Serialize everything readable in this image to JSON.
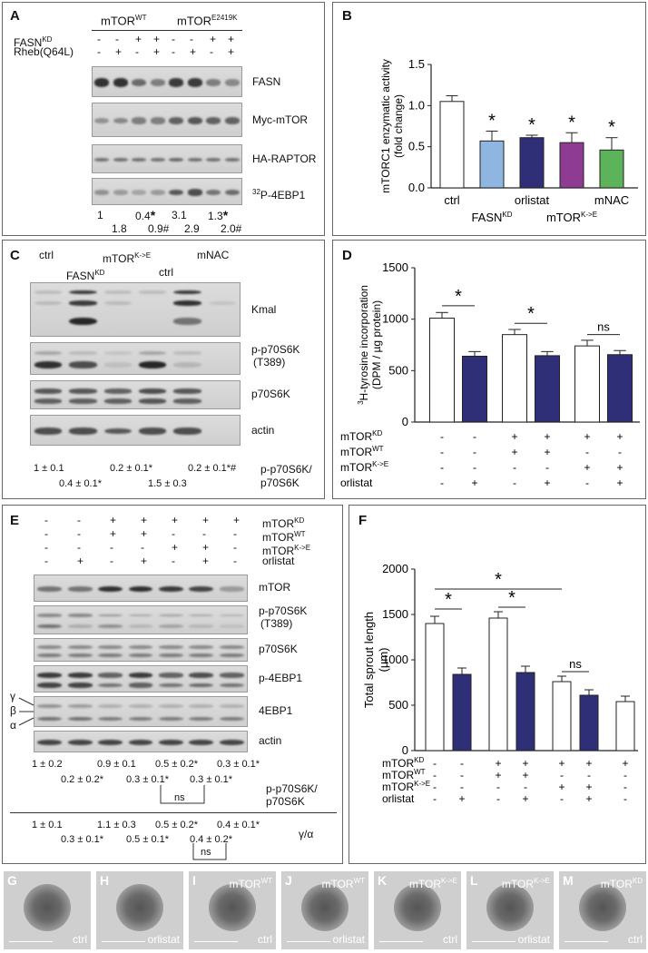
{
  "panelA": {
    "label": "A",
    "groups": [
      "mTOR",
      "mTOR"
    ],
    "group_sups": [
      "WT",
      "E2419K"
    ],
    "row1_label": "FASN",
    "row1_sup": "KD",
    "row1_signs": [
      "-",
      "-",
      "+",
      "+",
      "-",
      "-",
      "+",
      "+"
    ],
    "row2_label": "Rheb(Q64L)",
    "row2_signs": [
      "-",
      "+",
      "-",
      "+",
      "-",
      "+",
      "-",
      "+"
    ],
    "blots": [
      "FASN",
      "Myc-mTOR",
      "HA-RAPTOR"
    ],
    "p32_sup": "32",
    "p32_label": "P-4EBP1",
    "quant_top": [
      "1",
      "0.4",
      "3.1",
      "1.3"
    ],
    "quant_bottom": [
      "1.8",
      "0.9#",
      "2.9",
      "2.0#"
    ],
    "star": "*"
  },
  "panelB": {
    "label": "B",
    "chart_data": {
      "type": "bar",
      "categories": [
        "ctrl",
        "FASN KD",
        "orlistat",
        "mTOR K->E",
        "mNAC"
      ],
      "values": [
        1.05,
        0.57,
        0.61,
        0.55,
        0.46
      ],
      "errors": [
        0.07,
        0.12,
        0.03,
        0.12,
        0.15
      ],
      "colors": [
        "#ffffff",
        "#8fb6e0",
        "#2e2f76",
        "#8e3c93",
        "#5db35a"
      ],
      "significance": [
        "",
        "*",
        "*",
        "*",
        "*"
      ],
      "ylabel": "mTORC1 enzymatic activity (fold change)",
      "ylim": [
        0,
        1.5
      ],
      "yticks": [
        "0.0",
        "0.5",
        "1.0",
        "1.5"
      ],
      "xlabels_top": [
        "ctrl",
        "orlistat",
        "mNAC"
      ],
      "xlabels_bottom": [
        "FASN",
        "mTOR"
      ],
      "xlabels_bottom_sups": [
        "KD",
        "K->E"
      ]
    }
  },
  "panelC": {
    "label": "C",
    "col_ctrl": "ctrl",
    "col_mtor": "mTOR",
    "col_mtor_sup": "K->E",
    "col_fasn": "FASN",
    "col_fasn_sup": "KD",
    "col_ctrl2": "ctrl",
    "col_mnac": "mNAC",
    "blots": [
      "Kmal",
      "p-p70S6K",
      "p70S6K",
      "actin"
    ],
    "blot2_sub": "(T389)",
    "quant_row1": [
      "1 ± 0.1",
      "0.2 ± 0.1*",
      "0.2 ± 0.1*#"
    ],
    "quant_row2": [
      "0.4 ± 0.1*",
      "1.5 ± 0.3"
    ],
    "ratio_label_1": "p-p70S6K/",
    "ratio_label_2": "p70S6K"
  },
  "panelD": {
    "label": "D",
    "chart_data": {
      "type": "bar",
      "values": [
        1010,
        640,
        850,
        645,
        740,
        655
      ],
      "errors": [
        55,
        45,
        50,
        40,
        55,
        40
      ],
      "colors": [
        "#ffffff",
        "#2e2f76",
        "#ffffff",
        "#2e2f76",
        "#ffffff",
        "#2e2f76"
      ],
      "ylabel_sup": "3",
      "ylabel": "H-tyrosine incorporation (DPM / µg protein)",
      "ylim": [
        0,
        1500
      ],
      "yticks": [
        "0",
        "500",
        "1000",
        "1500"
      ],
      "significance": [
        "*",
        "*",
        "ns"
      ],
      "rows": [
        {
          "label": "mTOR",
          "sup": "KD",
          "signs": [
            "-",
            "-",
            "+",
            "+",
            "+",
            "+"
          ]
        },
        {
          "label": "mTOR",
          "sup": "WT",
          "signs": [
            "-",
            "-",
            "+",
            "+",
            "-",
            "-"
          ]
        },
        {
          "label": "mTOR",
          "sup": "K->E",
          "signs": [
            "-",
            "-",
            "-",
            "-",
            "+",
            "+"
          ]
        },
        {
          "label": "orlistat",
          "sup": "",
          "signs": [
            "-",
            "+",
            "-",
            "+",
            "-",
            "+"
          ]
        }
      ]
    }
  },
  "panelE": {
    "label": "E",
    "rows": [
      {
        "label": "mTOR",
        "sup": "KD",
        "signs": [
          "-",
          "-",
          "+",
          "+",
          "+",
          "+",
          "+"
        ]
      },
      {
        "label": "mTOR",
        "sup": "WT",
        "signs": [
          "-",
          "-",
          "+",
          "+",
          "-",
          "-",
          "-"
        ]
      },
      {
        "label": "mTOR",
        "sup": "K->E",
        "signs": [
          "-",
          "-",
          "-",
          "-",
          "+",
          "+",
          "-"
        ]
      },
      {
        "label": "orlistat",
        "sup": "",
        "signs": [
          "-",
          "+",
          "-",
          "+",
          "-",
          "+",
          "-"
        ]
      }
    ],
    "blots": [
      "mTOR",
      "p-p70S6K",
      "p70S6K",
      "p-4EBP1",
      "4EBP1",
      "actin"
    ],
    "blot2_sub": "(T389)",
    "greek": [
      "γ",
      "β",
      "α"
    ],
    "q1_top": [
      "1 ± 0.2",
      "0.9 ± 0.1",
      "0.5 ± 0.2*",
      "0.3 ± 0.1*"
    ],
    "q1_bottom": [
      "0.2 ± 0.2*",
      "0.3 ± 0.1*",
      "0.3 ± 0.1*"
    ],
    "q1_label_1": "p-p70S6K/",
    "q1_label_2": "p70S6K",
    "q2_top": [
      "1 ± 0.1",
      "1.1 ± 0.3",
      "0.5 ± 0.2*",
      "0.4 ± 0.1*"
    ],
    "q2_bottom": [
      "0.3 ± 0.1*",
      "0.5 ± 0.1*",
      "0.4 ± 0.2*"
    ],
    "q2_label": "γ/α",
    "ns": "ns"
  },
  "panelF": {
    "label": "F",
    "chart_data": {
      "type": "bar",
      "values": [
        1400,
        840,
        1460,
        860,
        760,
        610,
        540
      ],
      "errors": [
        80,
        70,
        70,
        70,
        60,
        60,
        60
      ],
      "colors": [
        "#ffffff",
        "#2e2f76",
        "#ffffff",
        "#2e2f76",
        "#ffffff",
        "#2e2f76",
        "#ffffff"
      ],
      "ylabel": "Total sprout length (µm)",
      "ylim": [
        0,
        2000
      ],
      "yticks": [
        "0",
        "500",
        "1000",
        "1500",
        "2000"
      ],
      "significance": [
        "*",
        "*",
        "*",
        "ns"
      ],
      "rows": [
        {
          "label": "mTOR",
          "sup": "KD",
          "signs": [
            "-",
            "-",
            "+",
            "+",
            "+",
            "+",
            "+"
          ]
        },
        {
          "label": "mTOR",
          "sup": "WT",
          "signs": [
            "-",
            "-",
            "+",
            "+",
            "-",
            "-",
            "-"
          ]
        },
        {
          "label": "mTOR",
          "sup": "K->E",
          "signs": [
            "-",
            "-",
            "-",
            "-",
            "+",
            "+",
            "-"
          ]
        },
        {
          "label": "orlistat",
          "sup": "",
          "signs": [
            "-",
            "+",
            "-",
            "+",
            "-",
            "+",
            "-"
          ]
        }
      ]
    }
  },
  "micrographs": [
    {
      "letter": "G",
      "top": "",
      "top_sup": "",
      "bottom": "ctrl"
    },
    {
      "letter": "H",
      "top": "",
      "top_sup": "",
      "bottom": "orlistat"
    },
    {
      "letter": "I",
      "top": "mTOR",
      "top_sup": "WT",
      "bottom": "ctrl"
    },
    {
      "letter": "J",
      "top": "mTOR",
      "top_sup": "WT",
      "bottom": "orlistat"
    },
    {
      "letter": "K",
      "top": "mTOR",
      "top_sup": "K->E",
      "bottom": "ctrl"
    },
    {
      "letter": "L",
      "top": "mTOR",
      "top_sup": "K->E",
      "bottom": "orlistat"
    },
    {
      "letter": "M",
      "top": "mTOR",
      "top_sup": "KD",
      "bottom": "ctrl"
    }
  ]
}
